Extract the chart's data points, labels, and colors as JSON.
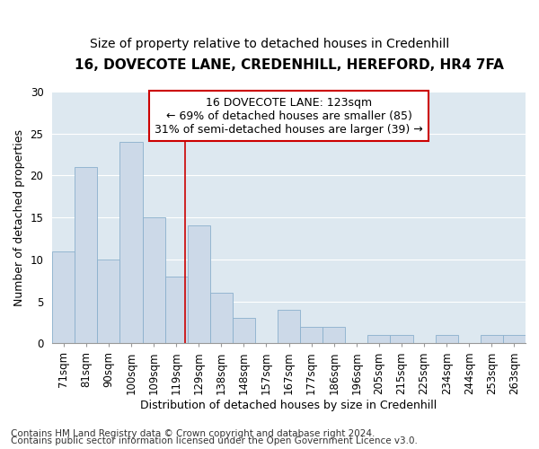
{
  "title": "16, DOVECOTE LANE, CREDENHILL, HEREFORD, HR4 7FA",
  "subtitle": "Size of property relative to detached houses in Credenhill",
  "xlabel": "Distribution of detached houses by size in Credenhill",
  "ylabel": "Number of detached properties",
  "categories": [
    "71sqm",
    "81sqm",
    "90sqm",
    "100sqm",
    "109sqm",
    "119sqm",
    "129sqm",
    "138sqm",
    "148sqm",
    "157sqm",
    "167sqm",
    "177sqm",
    "186sqm",
    "196sqm",
    "205sqm",
    "215sqm",
    "225sqm",
    "234sqm",
    "244sqm",
    "253sqm",
    "263sqm"
  ],
  "values": [
    11,
    21,
    10,
    24,
    15,
    8,
    14,
    6,
    3,
    0,
    4,
    2,
    2,
    0,
    1,
    1,
    0,
    1,
    0,
    1,
    1
  ],
  "bar_color": "#ccd9e8",
  "bar_edge_color": "#8ab0cc",
  "annotation_box_text": "16 DOVECOTE LANE: 123sqm\n← 69% of detached houses are smaller (85)\n31% of semi-detached houses are larger (39) →",
  "annotation_box_color": "#ffffff",
  "annotation_box_edge_color": "#cc0000",
  "red_line_x": 5.4,
  "ylim": [
    0,
    30
  ],
  "yticks": [
    0,
    5,
    10,
    15,
    20,
    25,
    30
  ],
  "background_color": "#ffffff",
  "plot_bg_color": "#dde8f0",
  "grid_color": "#ffffff",
  "footer_line1": "Contains HM Land Registry data © Crown copyright and database right 2024.",
  "footer_line2": "Contains public sector information licensed under the Open Government Licence v3.0.",
  "title_fontsize": 11,
  "subtitle_fontsize": 10,
  "annotation_fontsize": 9,
  "xlabel_fontsize": 9,
  "ylabel_fontsize": 9,
  "footer_fontsize": 7.5,
  "tick_fontsize": 8.5
}
